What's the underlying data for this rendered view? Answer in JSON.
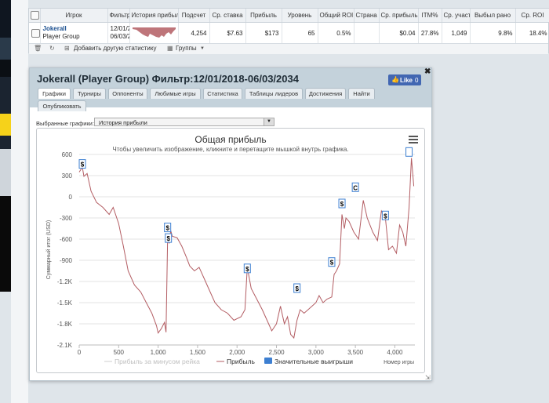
{
  "stats_table": {
    "headers": [
      "Игрок",
      "Фильтр",
      "История прибыли",
      "Подсчет",
      "Ср. ставка",
      "Прибыль",
      "Уровень",
      "Общий ROI",
      "Страна",
      "Ср. прибыль",
      "ITM%",
      "Ср. участ",
      "Выбыл рано",
      "Ср. ROI"
    ],
    "row": {
      "player_name": "Jokerall",
      "player_group": "Player Group",
      "filter_line1": "12/01/2",
      "filter_line2": "06/03/2",
      "count": "4,254",
      "avg_stake": "$7.63",
      "profit": "$173",
      "level": "65",
      "total_roi": "0.5%",
      "country": "",
      "avg_profit": "$0.04",
      "itm": "27.8%",
      "avg_entrants": "1,049",
      "early_out": "9.8%",
      "avg_roi": "18.4%"
    },
    "footer": {
      "add_stat_label": "Добавить другую статистику",
      "groups_label": "Группы"
    }
  },
  "popup": {
    "title": "Jokerall (Player Group) Фильтр:12/01/2018-06/03/2034",
    "like_label": "Like",
    "like_count": "0",
    "tabs": [
      "Графики",
      "Турниры",
      "Оппоненты",
      "Любимые игры",
      "Статистика",
      "Таблицы лидеров",
      "Достижения",
      "Найти",
      "Опубликовать"
    ],
    "active_tab": "Графики",
    "select_label": "Выбранные графики:",
    "select_value": "История прибыли"
  },
  "chart_data": {
    "type": "line",
    "title": "Общая прибыль",
    "subtitle": "Чтобы увеличить изображение, кликните и перетащите мышкой внутрь графика.",
    "xlabel": "Номер игры",
    "ylabel": "Суммарный итог (USD)",
    "xlim": [
      0,
      4254
    ],
    "ylim": [
      -2100,
      600
    ],
    "x_ticks": [
      0,
      500,
      1000,
      1500,
      2000,
      2500,
      3000,
      3500,
      4000
    ],
    "x_tick_labels": [
      "0",
      "500",
      "1,000",
      "1,500",
      "2,000",
      "2,500",
      "3,000",
      "3,500",
      "4,000"
    ],
    "y_ticks": [
      600,
      300,
      0,
      -300,
      -600,
      -900,
      -1200,
      -1500,
      -1800,
      -2100
    ],
    "y_tick_labels": [
      "600",
      "300",
      "0",
      "-300",
      "-600",
      "-900",
      "-1.2K",
      "-1.5K",
      "-1.8K",
      "-2.1K"
    ],
    "grid": true,
    "legend_position": "bottom",
    "series": [
      {
        "name": "Прибыль за минусом рейка",
        "color": "#cfcfcf",
        "visible": false
      },
      {
        "name": "Прибыль",
        "color": "#b35d63",
        "x": [
          0,
          40,
          60,
          100,
          150,
          220,
          300,
          380,
          430,
          500,
          560,
          620,
          700,
          780,
          850,
          920,
          980,
          1000,
          1040,
          1080,
          1100,
          1120,
          1140,
          1160,
          1180,
          1240,
          1300,
          1360,
          1400,
          1460,
          1520,
          1580,
          1640,
          1720,
          1800,
          1880,
          1960,
          2050,
          2100,
          2130,
          2180,
          2250,
          2320,
          2380,
          2440,
          2500,
          2550,
          2600,
          2640,
          2680,
          2720,
          2760,
          2800,
          2850,
          2900,
          2950,
          3000,
          3040,
          3090,
          3140,
          3200,
          3230,
          3260,
          3300,
          3330,
          3360,
          3380,
          3420,
          3480,
          3540,
          3600,
          3650,
          3720,
          3780,
          3830,
          3880,
          3920,
          3970,
          4020,
          4060,
          4100,
          4140,
          4180,
          4210,
          4240
        ],
        "y": [
          350,
          420,
          290,
          330,
          80,
          -80,
          -150,
          -250,
          -150,
          -380,
          -700,
          -1050,
          -1250,
          -1350,
          -1500,
          -1650,
          -1830,
          -1930,
          -1870,
          -1780,
          -1920,
          -600,
          -660,
          -480,
          -560,
          -580,
          -700,
          -860,
          -980,
          -1050,
          -1000,
          -1150,
          -1300,
          -1500,
          -1600,
          -1650,
          -1750,
          -1700,
          -1600,
          -1000,
          -1300,
          -1450,
          -1600,
          -1750,
          -1900,
          -1800,
          -1550,
          -1800,
          -1700,
          -1950,
          -2000,
          -1750,
          -1600,
          -1650,
          -1600,
          -1550,
          -1500,
          -1400,
          -1500,
          -1450,
          -1420,
          -1100,
          -1050,
          -950,
          -250,
          -450,
          -300,
          -350,
          -500,
          -600,
          -50,
          -300,
          -500,
          -620,
          -200,
          -300,
          -750,
          -700,
          -800,
          -400,
          -500,
          -700,
          -150,
          550,
          150
        ]
      },
      {
        "name": "Значительные выигрыши",
        "color": "#3d7fd1",
        "type": "marker"
      }
    ],
    "annotations": [
      {
        "x": 40,
        "y": 460,
        "label": "$"
      },
      {
        "x": 1120,
        "y": -440,
        "label": "$"
      },
      {
        "x": 1130,
        "y": -590,
        "label": "$"
      },
      {
        "x": 2130,
        "y": -1020,
        "label": "$"
      },
      {
        "x": 2760,
        "y": -1300,
        "label": "$"
      },
      {
        "x": 3200,
        "y": -930,
        "label": "$"
      },
      {
        "x": 3330,
        "y": -100,
        "label": "$"
      },
      {
        "x": 3500,
        "y": 130,
        "label": "C"
      },
      {
        "x": 3880,
        "y": -270,
        "label": "$"
      },
      {
        "x": 4180,
        "y": 630,
        "label": ""
      }
    ]
  }
}
